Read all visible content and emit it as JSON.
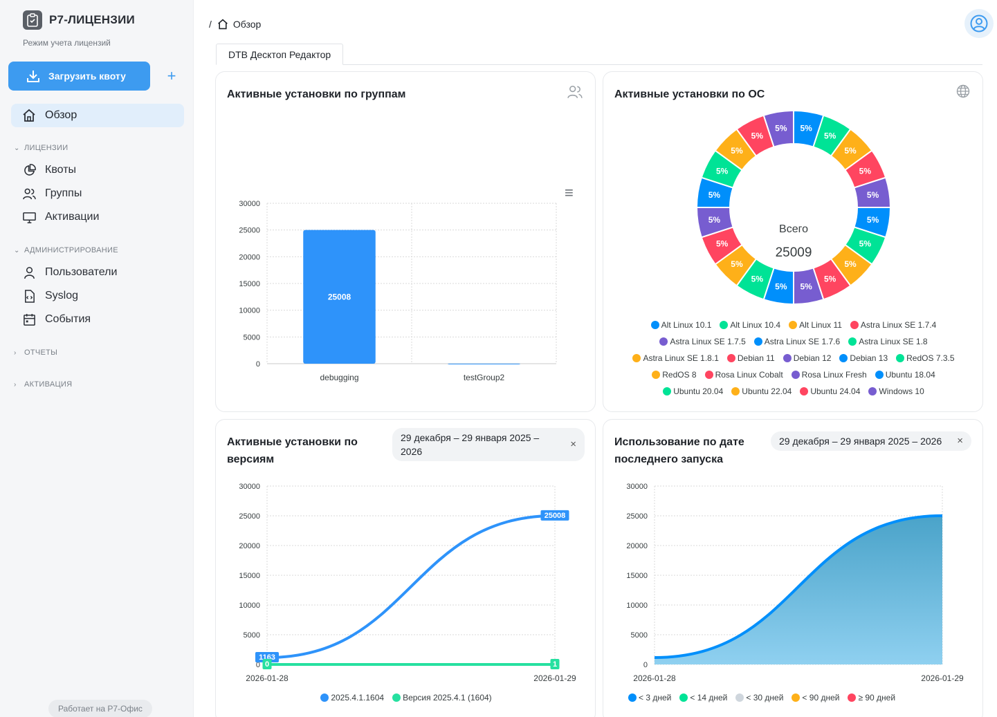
{
  "brand": {
    "name": "Р7-ЛИЦЕНЗИИ",
    "subtitle": "Режим учета лицензий"
  },
  "sidebar": {
    "upload_label": "Загрузить квоту",
    "plus": "+",
    "overview": "Обзор",
    "sections": {
      "licenses": "ЛИЦЕНЗИИ",
      "admin": "АДМИНИСТРИРОВАНИЕ",
      "reports": "ОТЧЕТЫ",
      "activation": "АКТИВАЦИЯ"
    },
    "items": {
      "quotas": "Квоты",
      "groups": "Группы",
      "activations": "Активации",
      "users": "Пользователи",
      "syslog": "Syslog",
      "events": "События"
    },
    "powered": "Работает на Р7-Офис"
  },
  "breadcrumb": {
    "sep": "/",
    "current": "Обзор"
  },
  "tab": {
    "label": "DTB Десктоп Редактор"
  },
  "cards": {
    "groups": {
      "title": "Активные установки по группам",
      "menu": "≡"
    },
    "os": {
      "title": "Активные установки по ОС",
      "total_label": "Всего",
      "total_value": "25009"
    },
    "versions": {
      "title": "Активные установки по версиям",
      "date_range": "29 декабря – 29 января 2025 – 2026",
      "close": "×"
    },
    "last_run": {
      "title": "Использование по дате последнего запуска",
      "date_range": "29 декабря – 29 января 2025 – 2026",
      "close": "×"
    }
  },
  "chart_data": [
    {
      "id": "groups",
      "type": "bar",
      "categories": [
        "debugging",
        "testGroup2"
      ],
      "values": [
        25008,
        1
      ],
      "data_labels": [
        "25008",
        ""
      ],
      "y_ticks": [
        "0",
        "5000",
        "10000",
        "15000",
        "20000",
        "25000",
        "30000"
      ],
      "ylim": [
        0,
        30000
      ],
      "color": "#2e93fa"
    },
    {
      "id": "os",
      "type": "pie",
      "labels": [
        "Alt Linux 10.1",
        "Alt Linux 10.4",
        "Alt Linux 11",
        "Astra Linux SE 1.7.4",
        "Astra Linux SE 1.7.5",
        "Astra Linux SE 1.7.6",
        "Astra Linux SE 1.8",
        "Astra Linux SE 1.8.1",
        "Debian 11",
        "Debian 12",
        "Debian 13",
        "RedOS 7.3.5",
        "RedOS 8",
        "Rosa Linux Cobalt",
        "Rosa Linux Fresh",
        "Ubuntu 18.04",
        "Ubuntu 20.04",
        "Ubuntu 22.04",
        "Ubuntu 24.04",
        "Windows 10"
      ],
      "values": [
        5,
        5,
        5,
        5,
        5,
        5,
        5,
        5,
        5,
        5,
        5,
        5,
        5,
        5,
        5,
        5,
        5,
        5,
        5,
        5
      ],
      "slice_label": "5%",
      "colors": [
        "#008ffb",
        "#00e396",
        "#feb019",
        "#ff4560",
        "#775dd0",
        "#008ffb",
        "#00e396",
        "#feb019",
        "#ff4560",
        "#775dd0",
        "#008ffb",
        "#00e396",
        "#feb019",
        "#ff4560",
        "#775dd0",
        "#008ffb",
        "#00e396",
        "#feb019",
        "#ff4560",
        "#775dd0"
      ]
    },
    {
      "id": "versions",
      "type": "line",
      "x_labels": [
        "2026-01-28",
        "2026-01-29"
      ],
      "y_ticks": [
        "0",
        "5000",
        "10000",
        "15000",
        "20000",
        "25000",
        "30000"
      ],
      "ylim": [
        0,
        30000
      ],
      "series": [
        {
          "name": "2025.4.1.1604",
          "values": [
            1163,
            25008
          ],
          "color": "#2e93fa",
          "labels": [
            "1163",
            "25008"
          ]
        },
        {
          "name": "Версия 2025.4.1 (1604)",
          "values": [
            0,
            1
          ],
          "color": "#26e0a0",
          "labels": [
            "0",
            "1"
          ]
        }
      ]
    },
    {
      "id": "last_run",
      "type": "area",
      "x_labels": [
        "2026-01-28",
        "2026-01-29"
      ],
      "y_ticks": [
        "0",
        "5000",
        "10000",
        "15000",
        "20000",
        "25000",
        "30000"
      ],
      "ylim": [
        0,
        30000
      ],
      "series": [
        {
          "name": "< 3 дней",
          "values": [
            1163,
            25008
          ],
          "color": "#008ffb"
        },
        {
          "name": "< 14 дней",
          "values": [
            0,
            0
          ],
          "color": "#00e396"
        },
        {
          "name": "< 30 дней",
          "values": [
            0,
            0
          ],
          "color": "#cfd6dd"
        },
        {
          "name": "< 90 дней",
          "values": [
            0,
            0
          ],
          "color": "#feb019"
        },
        {
          "name": "≥ 90 дней",
          "values": [
            0,
            0
          ],
          "color": "#ff4560"
        }
      ]
    }
  ]
}
